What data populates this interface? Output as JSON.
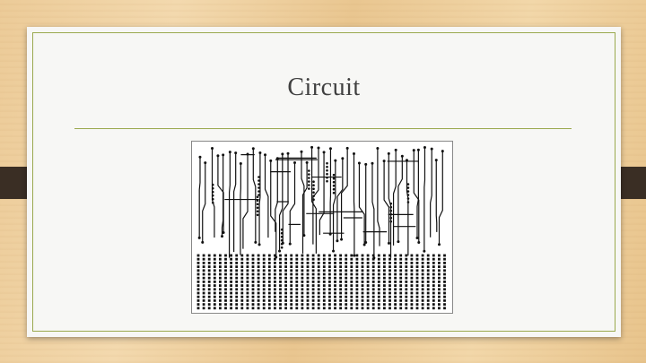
{
  "slide": {
    "title": "Circuit"
  },
  "image": {
    "icon": "circuit-board-diagram"
  },
  "colors": {
    "background": "#eccb98",
    "slide": "#f7f7f5",
    "accent_line": "#9aa94e",
    "tab": "#3a2e24",
    "title_text": "#404040"
  }
}
